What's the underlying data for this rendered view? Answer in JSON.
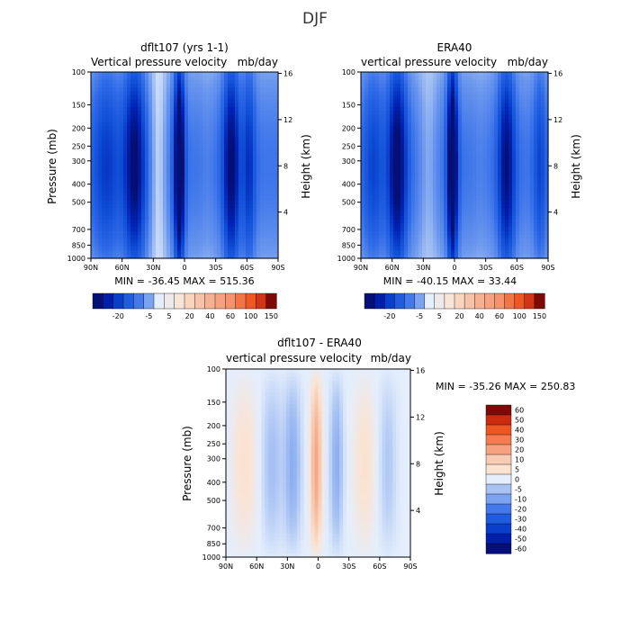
{
  "figure_title": "DJF",
  "colors": {
    "map": [
      [
        -1.0,
        "#050f75"
      ],
      [
        -0.8,
        "#0022b5"
      ],
      [
        -0.6,
        "#0f4ed6"
      ],
      [
        -0.4,
        "#2f6ae8"
      ],
      [
        -0.2,
        "#6a96ee"
      ],
      [
        -0.08,
        "#a9c3f3"
      ],
      [
        0.0,
        "#e4eefc"
      ],
      [
        0.08,
        "#fbe3d2"
      ],
      [
        0.25,
        "#f6b597"
      ],
      [
        0.45,
        "#f5875f"
      ],
      [
        0.65,
        "#f15a26"
      ],
      [
        0.85,
        "#c8280f"
      ],
      [
        1.0,
        "#7d0a06"
      ]
    ]
  },
  "chart_data": [
    {
      "type": "heatmap",
      "title": "dflt107 (yrs 1-1)",
      "subtitle_left": "Vertical pressure velocity",
      "subtitle_right": "mb/day",
      "ylabel": "Pressure (mb)",
      "ylabel_right": "Height (km)",
      "x_ticks": [
        "90N",
        "60N",
        "30N",
        "0",
        "30S",
        "60S",
        "90S"
      ],
      "y_ticks": [
        "100",
        "150",
        "200",
        "250",
        "300",
        "400",
        "500",
        "700",
        "850",
        "1000"
      ],
      "y_ticks_right": [
        "16",
        "12",
        "8",
        "4"
      ],
      "stats": "MIN = -36.45   MAX = 515.36",
      "colorbar": [
        "-20",
        "-5",
        "5",
        "20",
        "40",
        "60",
        "100",
        "150"
      ],
      "colorbar_levels": [
        -30,
        -25,
        -20,
        -15,
        -10,
        -5,
        0,
        5,
        10,
        20,
        30,
        40,
        50,
        60,
        80,
        100,
        120,
        150
      ],
      "ylim": [
        1000,
        100
      ],
      "xlim": [
        90,
        -90
      ],
      "value_scale": "diverging",
      "bands": [
        {
          "lat": 75,
          "width": 14,
          "amp": -0.35
        },
        {
          "lat": 48,
          "width": 10,
          "amp": -0.7
        },
        {
          "lat": 25,
          "width": 8,
          "amp": 0.3
        },
        {
          "lat": 5,
          "width": 5,
          "amp": -1.0
        },
        {
          "lat": -22,
          "width": 6,
          "amp": 0.05
        },
        {
          "lat": -45,
          "width": 8,
          "amp": -0.7
        },
        {
          "lat": -62,
          "width": 6,
          "amp": -0.4
        }
      ]
    },
    {
      "type": "heatmap",
      "title": "ERA40",
      "subtitle_left": "vertical pressure velocity",
      "subtitle_right": "mb/day",
      "ylabel": "",
      "ylabel_right": "Height (km)",
      "x_ticks": [
        "90N",
        "60N",
        "30N",
        "0",
        "30S",
        "60S",
        "90S"
      ],
      "y_ticks": [
        "100",
        "150",
        "200",
        "250",
        "300",
        "400",
        "500",
        "700",
        "850",
        "1000"
      ],
      "y_ticks_right": [
        "16",
        "12",
        "8",
        "4"
      ],
      "stats": "MIN = -40.15   MAX = 33.44",
      "colorbar": [
        "-20",
        "-5",
        "5",
        "20",
        "40",
        "60",
        "100",
        "150"
      ],
      "colorbar_levels": [
        -30,
        -25,
        -20,
        -15,
        -10,
        -5,
        0,
        5,
        10,
        20,
        30,
        40,
        50,
        60,
        80,
        100,
        120,
        150
      ],
      "ylim": [
        1000,
        100
      ],
      "xlim": [
        90,
        -90
      ],
      "value_scale": "diverging",
      "bands": [
        {
          "lat": 78,
          "width": 10,
          "amp": -0.3
        },
        {
          "lat": 55,
          "width": 9,
          "amp": -0.75
        },
        {
          "lat": 25,
          "width": 9,
          "amp": 0.2
        },
        {
          "lat": 2,
          "width": 5,
          "amp": -1.0
        },
        {
          "lat": -25,
          "width": 7,
          "amp": 0.05
        },
        {
          "lat": -50,
          "width": 8,
          "amp": -0.65
        },
        {
          "lat": -82,
          "width": 6,
          "amp": -0.3
        }
      ]
    },
    {
      "type": "heatmap",
      "title": "dflt107 - ERA40",
      "subtitle_left": "vertical pressure velocity",
      "subtitle_right": "mb/day",
      "ylabel": "Pressure (mb)",
      "ylabel_right": "Height (km)",
      "x_ticks": [
        "90N",
        "60N",
        "30N",
        "0",
        "30S",
        "60S",
        "90S"
      ],
      "y_ticks": [
        "100",
        "150",
        "200",
        "250",
        "300",
        "400",
        "500",
        "700",
        "850",
        "1000"
      ],
      "y_ticks_right": [
        "16",
        "12",
        "8",
        "4"
      ],
      "stats": "MIN = -35.26   MAX = 250.83",
      "colorbar": [
        "60",
        "50",
        "40",
        "30",
        "20",
        "10",
        "5",
        "0",
        "-5",
        "-10",
        "-20",
        "-30",
        "-40",
        "-50",
        "-60"
      ],
      "colorbar_levels": [
        60,
        50,
        40,
        30,
        20,
        10,
        5,
        0,
        -5,
        -10,
        -20,
        -30,
        -40,
        -50,
        -60
      ],
      "ylim": [
        1000,
        100
      ],
      "xlim": [
        90,
        -90
      ],
      "value_scale": "difference",
      "bands": [
        {
          "lat": 72,
          "width": 12,
          "amp": 0.1
        },
        {
          "lat": 45,
          "width": 10,
          "amp": -0.1
        },
        {
          "lat": 25,
          "width": 8,
          "amp": -0.15
        },
        {
          "lat": 2,
          "width": 5,
          "amp": 0.35
        },
        {
          "lat": -18,
          "width": 6,
          "amp": -0.15
        },
        {
          "lat": -45,
          "width": 10,
          "amp": 0.1
        },
        {
          "lat": -68,
          "width": 8,
          "amp": -0.08
        }
      ]
    }
  ]
}
